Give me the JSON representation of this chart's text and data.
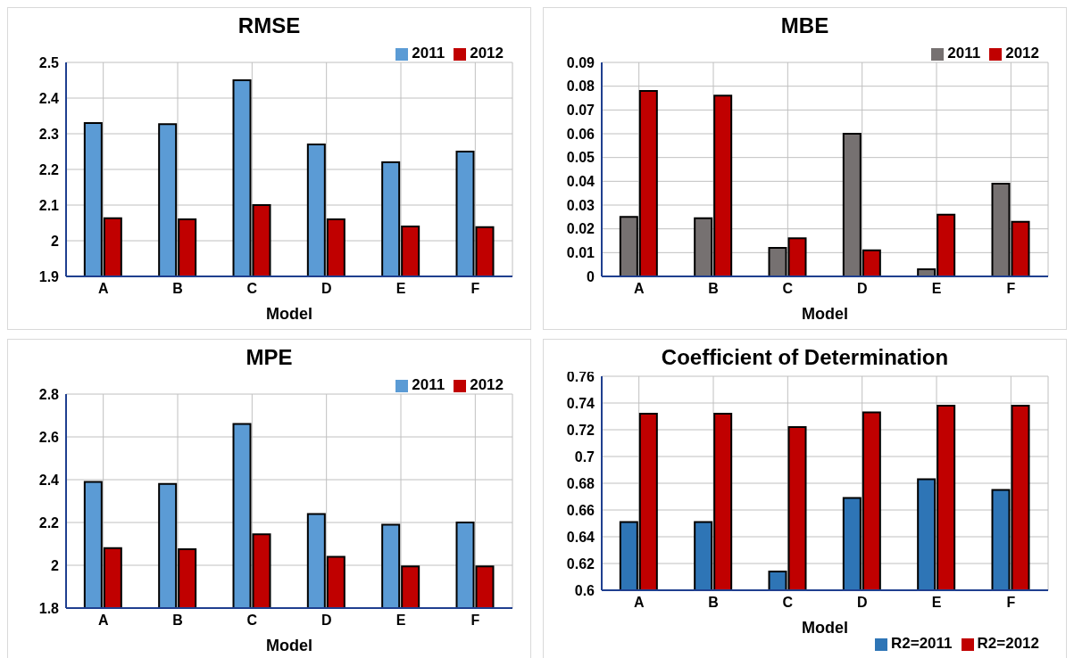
{
  "chart_data": [
    {
      "type": "bar",
      "title": "RMSE",
      "xlabel": "Model",
      "categories": [
        "A",
        "B",
        "C",
        "D",
        "E",
        "F"
      ],
      "series": [
        {
          "name": "2011",
          "color": "#5b9bd5",
          "values": [
            2.33,
            2.327,
            2.45,
            2.27,
            2.22,
            2.25
          ]
        },
        {
          "name": "2012",
          "color": "#c00000",
          "values": [
            2.063,
            2.06,
            2.1,
            2.06,
            2.04,
            2.038
          ]
        }
      ],
      "ylim": [
        1.9,
        2.5
      ],
      "yticks": [
        1.9,
        2,
        2.1,
        2.2,
        2.3,
        2.4,
        2.5
      ],
      "grid": true,
      "legend": "top right"
    },
    {
      "type": "bar",
      "title": "MBE",
      "xlabel": "Model",
      "categories": [
        "A",
        "B",
        "C",
        "D",
        "E",
        "F"
      ],
      "series": [
        {
          "name": "2011",
          "color": "#767171",
          "values": [
            0.025,
            0.0245,
            0.012,
            0.06,
            0.003,
            0.039
          ]
        },
        {
          "name": "2012",
          "color": "#c00000",
          "values": [
            0.078,
            0.076,
            0.016,
            0.011,
            0.026,
            0.023
          ]
        }
      ],
      "ylim": [
        0,
        0.09
      ],
      "yticks": [
        0,
        0.01,
        0.02,
        0.03,
        0.04,
        0.05,
        0.06,
        0.07,
        0.08,
        0.09
      ],
      "grid": true,
      "legend": "top right"
    },
    {
      "type": "bar",
      "title": "MPE",
      "xlabel": "Model",
      "categories": [
        "A",
        "B",
        "C",
        "D",
        "E",
        "F"
      ],
      "series": [
        {
          "name": "2011",
          "color": "#5b9bd5",
          "values": [
            2.39,
            2.38,
            2.66,
            2.24,
            2.19,
            2.2
          ]
        },
        {
          "name": "2012",
          "color": "#c00000",
          "values": [
            2.08,
            2.075,
            2.145,
            2.04,
            1.995,
            1.995
          ]
        }
      ],
      "ylim": [
        1.8,
        2.8
      ],
      "yticks": [
        1.8,
        2,
        2.2,
        2.4,
        2.6,
        2.8
      ],
      "grid": true,
      "legend": "top right"
    },
    {
      "type": "bar",
      "title": "Coefficient of Determination",
      "xlabel": "Model",
      "categories": [
        "A",
        "B",
        "C",
        "D",
        "E",
        "F"
      ],
      "series": [
        {
          "name": "R2=2011",
          "color": "#2e75b6",
          "values": [
            0.651,
            0.651,
            0.614,
            0.669,
            0.683,
            0.675
          ]
        },
        {
          "name": "R2=2012",
          "color": "#c00000",
          "values": [
            0.732,
            0.732,
            0.722,
            0.733,
            0.738,
            0.738
          ]
        }
      ],
      "ylim": [
        0.6,
        0.76
      ],
      "yticks": [
        0.6,
        0.62,
        0.64,
        0.66,
        0.68,
        0.7,
        0.72,
        0.74,
        0.76
      ],
      "grid": true,
      "legend": "bottom right"
    }
  ]
}
